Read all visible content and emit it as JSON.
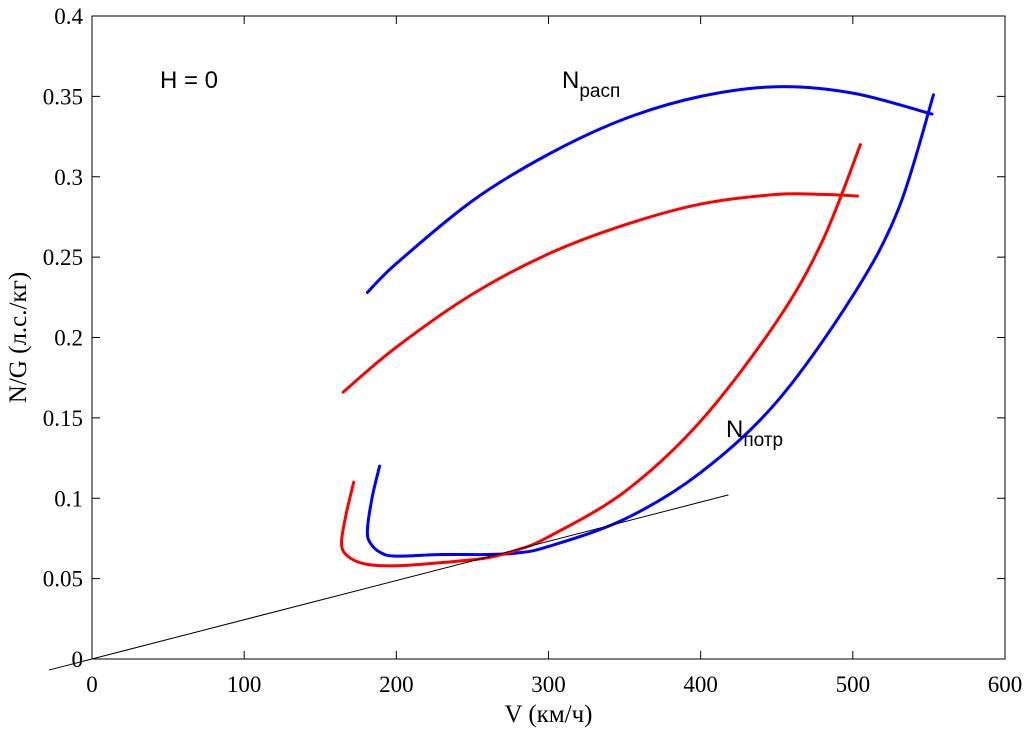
{
  "chart_data": {
    "type": "line",
    "xlabel": "V (км/ч)",
    "ylabel": "N/G (л.с./кг)",
    "xlim": [
      0,
      600
    ],
    "ylim": [
      0,
      0.4
    ],
    "xticks": [
      0,
      100,
      200,
      300,
      400,
      500,
      600
    ],
    "yticks": [
      0,
      0.05,
      0.1,
      0.15,
      0.2,
      0.25,
      0.3,
      0.35,
      0.4
    ],
    "xtick_labels": [
      "0",
      "100",
      "200",
      "300",
      "400",
      "500",
      "600"
    ],
    "ytick_labels": [
      "0",
      "0.05",
      "0.1",
      "0.15",
      "0.2",
      "0.25",
      "0.3",
      "0.35",
      "0.4"
    ],
    "grid": false,
    "annotations": {
      "altitude": "H = 0",
      "available": {
        "main": "N",
        "sub": "расп"
      },
      "required": {
        "main": "N",
        "sub": "потр"
      }
    },
    "series": [
      {
        "name": "N расп (blue)",
        "color": "#0000ff",
        "points": [
          [
            181,
            0.228
          ],
          [
            200,
            0.246
          ],
          [
            250,
            0.285
          ],
          [
            300,
            0.314
          ],
          [
            350,
            0.336
          ],
          [
            400,
            0.35
          ],
          [
            450,
            0.356
          ],
          [
            500,
            0.352
          ],
          [
            552,
            0.339
          ]
        ]
      },
      {
        "name": "N расп (red)",
        "color": "#ff0000",
        "points": [
          [
            165,
            0.166
          ],
          [
            200,
            0.194
          ],
          [
            250,
            0.227
          ],
          [
            300,
            0.252
          ],
          [
            350,
            0.27
          ],
          [
            400,
            0.283
          ],
          [
            450,
            0.289
          ],
          [
            480,
            0.289
          ],
          [
            503,
            0.288
          ]
        ]
      },
      {
        "name": "N потр (blue)",
        "color": "#0000ff",
        "points": [
          [
            189,
            0.12
          ],
          [
            184,
            0.1
          ],
          [
            181,
            0.08
          ],
          [
            183,
            0.072
          ],
          [
            190,
            0.066
          ],
          [
            200,
            0.064
          ],
          [
            230,
            0.065
          ],
          [
            260,
            0.065
          ],
          [
            280,
            0.066
          ],
          [
            300,
            0.07
          ],
          [
            350,
            0.087
          ],
          [
            400,
            0.116
          ],
          [
            450,
            0.16
          ],
          [
            500,
            0.226
          ],
          [
            530,
            0.28
          ],
          [
            553,
            0.351
          ]
        ]
      },
      {
        "name": "N потр (red)",
        "color": "#ff0000",
        "points": [
          [
            172,
            0.11
          ],
          [
            167,
            0.09
          ],
          [
            164,
            0.072
          ],
          [
            168,
            0.064
          ],
          [
            180,
            0.059
          ],
          [
            200,
            0.058
          ],
          [
            230,
            0.06
          ],
          [
            260,
            0.063
          ],
          [
            280,
            0.068
          ],
          [
            300,
            0.076
          ],
          [
            350,
            0.104
          ],
          [
            400,
            0.148
          ],
          [
            450,
            0.21
          ],
          [
            480,
            0.26
          ],
          [
            505,
            0.32
          ]
        ]
      },
      {
        "name": "tangent line",
        "color": "#000000",
        "points": [
          [
            -28,
            -0.0068
          ],
          [
            418,
            0.102
          ]
        ]
      }
    ]
  }
}
